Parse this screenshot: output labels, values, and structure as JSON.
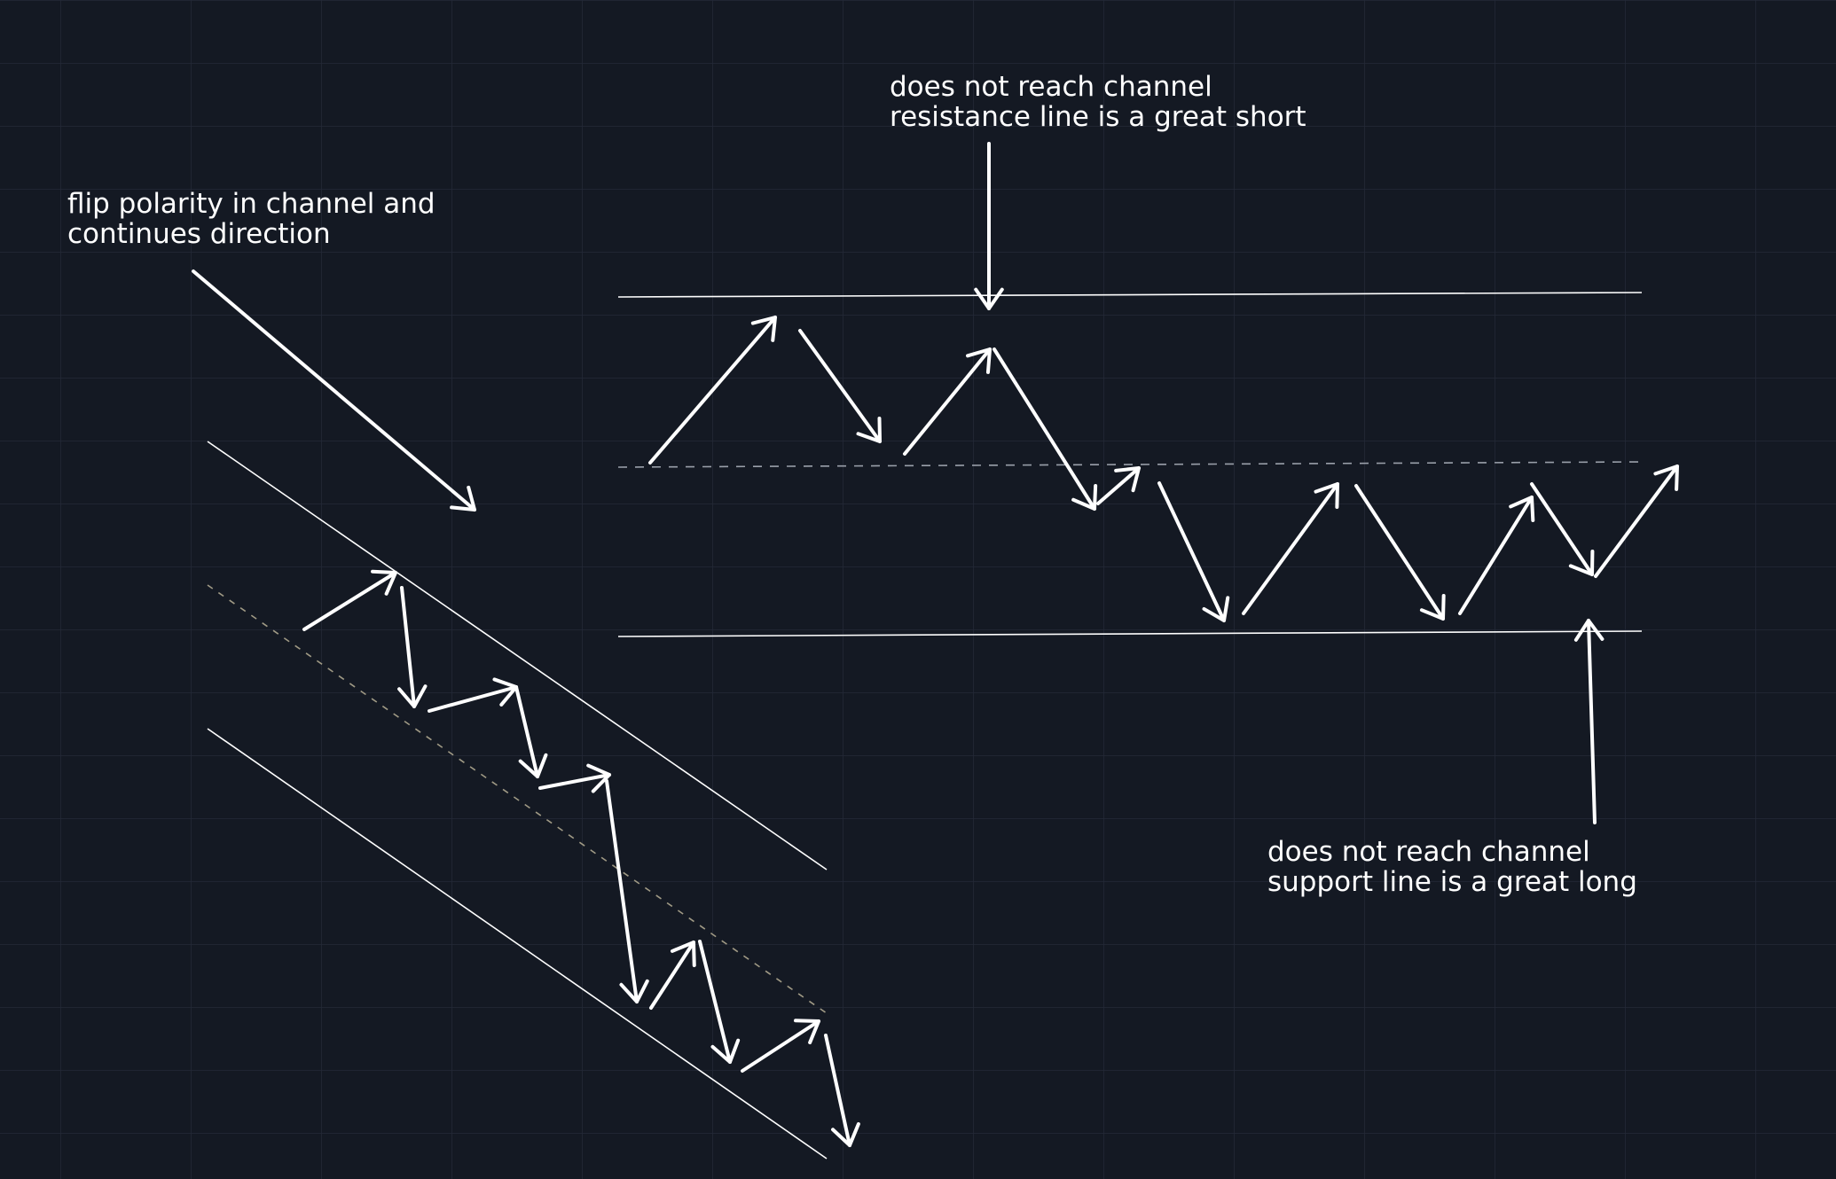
{
  "colors": {
    "background": "#141923",
    "grid": "#232937",
    "lines": "#ffffff",
    "dashed_descending": "#a09a85",
    "dashed_horizontal": "#9aa0aa"
  },
  "annotations": {
    "flip_polarity": {
      "line1": "flip polarity in channel and",
      "line2": "continues direction"
    },
    "resistance": {
      "line1": "does not reach channel",
      "line2": "resistance line is a great short"
    },
    "support": {
      "line1": "does not reach channel",
      "line2": "support line is a great long"
    }
  }
}
